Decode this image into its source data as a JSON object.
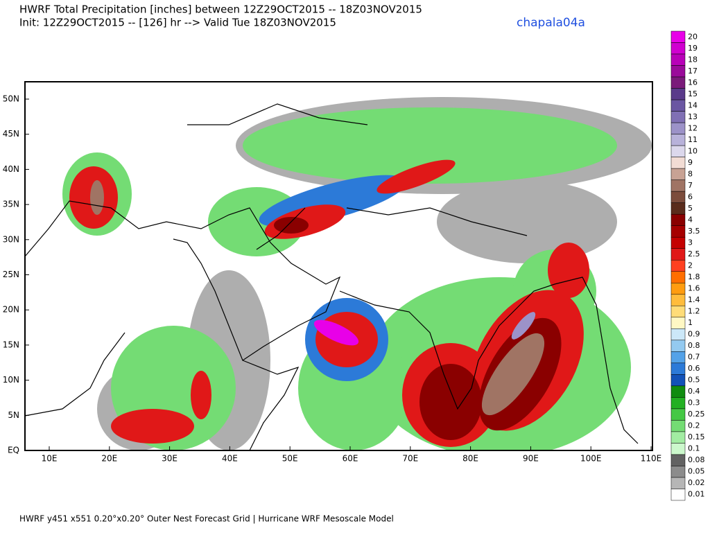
{
  "header": {
    "title": "HWRF Total Precipitation [inches] between 12Z29OCT2015 -- 18Z03NOV2015",
    "subtitle": "Init: 12Z29OCT2015 -- [126] hr --> Valid Tue 18Z03NOV2015",
    "storm": "chapala04a"
  },
  "map": {
    "lat_labels": [
      "EQ",
      "5N",
      "10N",
      "15N",
      "20N",
      "25N",
      "30N",
      "35N",
      "40N",
      "45N",
      "50N"
    ],
    "lon_labels": [
      "10E",
      "20E",
      "30E",
      "40E",
      "50E",
      "60E",
      "70E",
      "80E",
      "90E",
      "100E",
      "110E"
    ]
  },
  "legend": {
    "items": [
      {
        "label": "20",
        "color": "#e800e8"
      },
      {
        "label": "19",
        "color": "#d000d0"
      },
      {
        "label": "18",
        "color": "#b800b8"
      },
      {
        "label": "17",
        "color": "#9a0a9a"
      },
      {
        "label": "16",
        "color": "#7a1a7a"
      },
      {
        "label": "15",
        "color": "#5a3a8a"
      },
      {
        "label": "14",
        "color": "#6a56a2"
      },
      {
        "label": "13",
        "color": "#8070b4"
      },
      {
        "label": "12",
        "color": "#9c92c8"
      },
      {
        "label": "11",
        "color": "#b8b2da"
      },
      {
        "label": "10",
        "color": "#dcd8ec"
      },
      {
        "label": "9",
        "color": "#f2dcd4"
      },
      {
        "label": "8",
        "color": "#c8a294"
      },
      {
        "label": "7",
        "color": "#a07464"
      },
      {
        "label": "6",
        "color": "#7c4c3c"
      },
      {
        "label": "5",
        "color": "#5a2c1c"
      },
      {
        "label": "4",
        "color": "#8a0000"
      },
      {
        "label": "3.5",
        "color": "#a60000"
      },
      {
        "label": "3",
        "color": "#c40000"
      },
      {
        "label": "2.5",
        "color": "#e01818"
      },
      {
        "label": "2",
        "color": "#ff4020"
      },
      {
        "label": "1.8",
        "color": "#ff6e00"
      },
      {
        "label": "1.6",
        "color": "#ff9c10"
      },
      {
        "label": "1.4",
        "color": "#ffbc3c"
      },
      {
        "label": "1.2",
        "color": "#ffdc78"
      },
      {
        "label": "1",
        "color": "#fff8c4"
      },
      {
        "label": "0.9",
        "color": "#cce8f8"
      },
      {
        "label": "0.8",
        "color": "#94caf0"
      },
      {
        "label": "0.7",
        "color": "#54a2e8"
      },
      {
        "label": "0.6",
        "color": "#2c7ad8"
      },
      {
        "label": "0.5",
        "color": "#1252b8"
      },
      {
        "label": "0.4",
        "color": "#108c10"
      },
      {
        "label": "0.3",
        "color": "#22b022"
      },
      {
        "label": "0.25",
        "color": "#44c844"
      },
      {
        "label": "0.2",
        "color": "#74dc74"
      },
      {
        "label": "0.15",
        "color": "#a2eca2"
      },
      {
        "label": "0.1",
        "color": "#ccf8cc"
      },
      {
        "label": "0.08",
        "color": "#626262"
      },
      {
        "label": "0.05",
        "color": "#8c8c8c"
      },
      {
        "label": "0.02",
        "color": "#b6b6b6"
      },
      {
        "label": "0.01",
        "color": "#ffffff"
      }
    ]
  },
  "footer": "HWRF y451 x551 0.20°x0.20° Outer Nest Forecast Grid | Hurricane WRF Mesoscale Model"
}
